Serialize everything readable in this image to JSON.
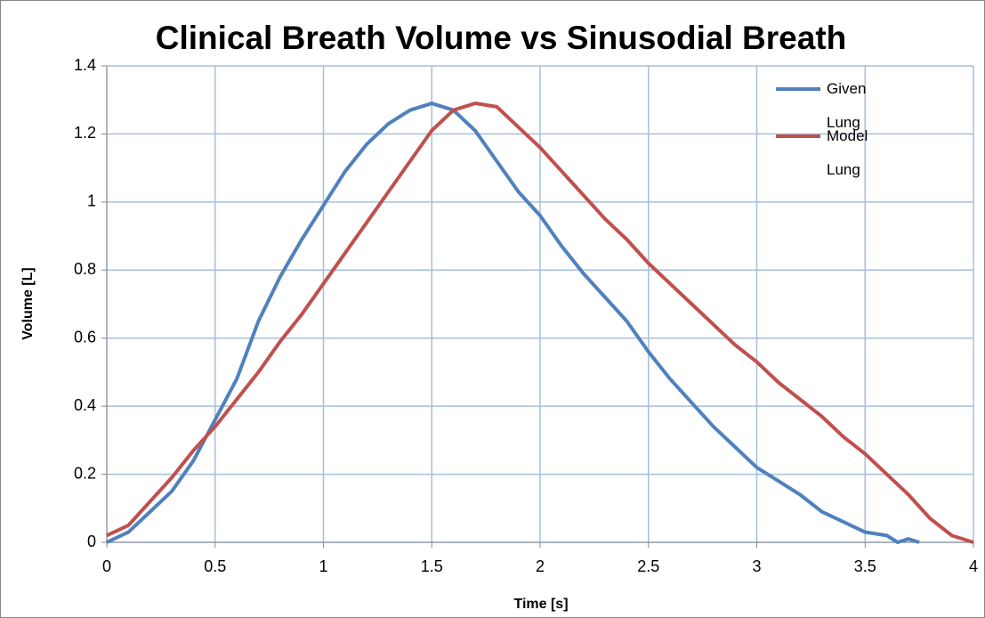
{
  "chart_data": {
    "type": "line",
    "title": "Clinical Breath Volume vs Sinusodial Breath",
    "x_label": "Time [s]",
    "y_label": "Volume [L]",
    "xlim": [
      0,
      4
    ],
    "xticks": [
      0,
      0.5,
      1,
      1.5,
      2,
      2.5,
      3,
      3.5,
      4
    ],
    "ylim": [
      0,
      1.4
    ],
    "yticks": [
      0,
      0.2,
      0.4,
      0.6,
      0.8,
      1,
      1.2,
      1.4
    ],
    "grid": true,
    "legend": "top-right",
    "series": [
      {
        "name": "Given Lung",
        "color": "#4f81bd",
        "x": [
          0,
          0.1,
          0.2,
          0.3,
          0.4,
          0.5,
          0.6,
          0.7,
          0.8,
          0.9,
          1.0,
          1.1,
          1.2,
          1.3,
          1.4,
          1.5,
          1.6,
          1.7,
          1.8,
          1.9,
          2.0,
          2.1,
          2.2,
          2.3,
          2.4,
          2.5,
          2.6,
          2.7,
          2.8,
          2.9,
          3.0,
          3.1,
          3.2,
          3.3,
          3.4,
          3.5,
          3.6,
          3.65,
          3.7,
          3.75
        ],
        "values": [
          0,
          0.03,
          0.09,
          0.15,
          0.24,
          0.36,
          0.48,
          0.65,
          0.78,
          0.89,
          0.99,
          1.09,
          1.17,
          1.23,
          1.27,
          1.29,
          1.27,
          1.21,
          1.12,
          1.03,
          0.96,
          0.87,
          0.79,
          0.72,
          0.65,
          0.56,
          0.48,
          0.41,
          0.34,
          0.28,
          0.22,
          0.18,
          0.14,
          0.09,
          0.06,
          0.03,
          0.02,
          0,
          0.01,
          0
        ]
      },
      {
        "name": "Model Lung",
        "color": "#c0504d",
        "x": [
          0,
          0.1,
          0.2,
          0.3,
          0.4,
          0.5,
          0.6,
          0.7,
          0.8,
          0.9,
          1.0,
          1.1,
          1.2,
          1.3,
          1.4,
          1.5,
          1.6,
          1.7,
          1.8,
          1.9,
          2.0,
          2.1,
          2.2,
          2.3,
          2.4,
          2.5,
          2.6,
          2.7,
          2.8,
          2.9,
          3.0,
          3.1,
          3.2,
          3.3,
          3.4,
          3.5,
          3.6,
          3.7,
          3.8,
          3.9,
          4.0
        ],
        "values": [
          0.02,
          0.05,
          0.12,
          0.19,
          0.27,
          0.34,
          0.42,
          0.5,
          0.59,
          0.67,
          0.76,
          0.85,
          0.94,
          1.03,
          1.12,
          1.21,
          1.27,
          1.29,
          1.28,
          1.22,
          1.16,
          1.09,
          1.02,
          0.95,
          0.89,
          0.82,
          0.76,
          0.7,
          0.64,
          0.58,
          0.53,
          0.47,
          0.42,
          0.37,
          0.31,
          0.26,
          0.2,
          0.14,
          0.07,
          0.02,
          0
        ]
      }
    ]
  }
}
